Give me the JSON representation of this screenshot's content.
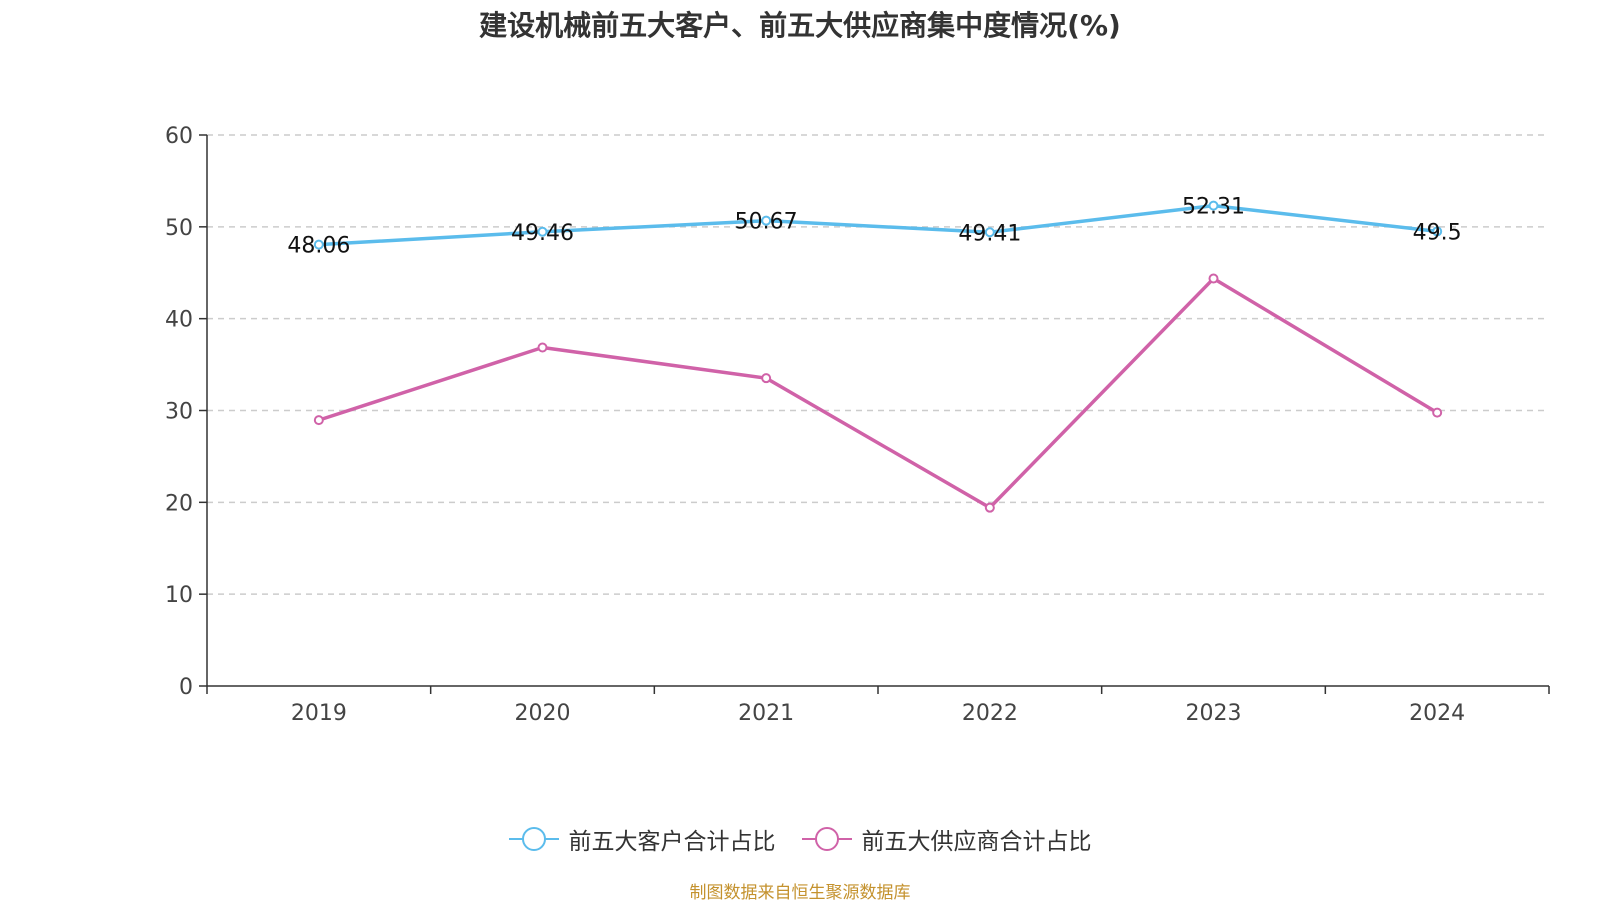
{
  "chart_data": {
    "type": "line",
    "title": "建设机械前五大客户、前五大供应商集中度情况(%)",
    "categories": [
      "2019",
      "2020",
      "2021",
      "2022",
      "2023",
      "2024"
    ],
    "series": [
      {
        "name": "前五大客户合计占比",
        "color": "#5bbcec",
        "values": [
          48.06,
          49.46,
          50.67,
          49.41,
          52.31,
          49.5
        ],
        "labels": [
          "48.06",
          "49.46",
          "50.67",
          "49.41",
          "52.31",
          "49.5"
        ],
        "show_labels": true
      },
      {
        "name": "前五大供应商合计占比",
        "color": "#d062a8",
        "values": [
          28.95,
          36.86,
          33.52,
          19.42,
          44.37,
          29.77
        ],
        "show_labels": false
      }
    ],
    "ylim": [
      0,
      60
    ],
    "yticks": [
      "0",
      "10",
      "20",
      "30",
      "40",
      "50",
      "60"
    ],
    "grid": true,
    "legend_position": "bottom"
  },
  "source_text": "制图数据来自恒生聚源数据库"
}
